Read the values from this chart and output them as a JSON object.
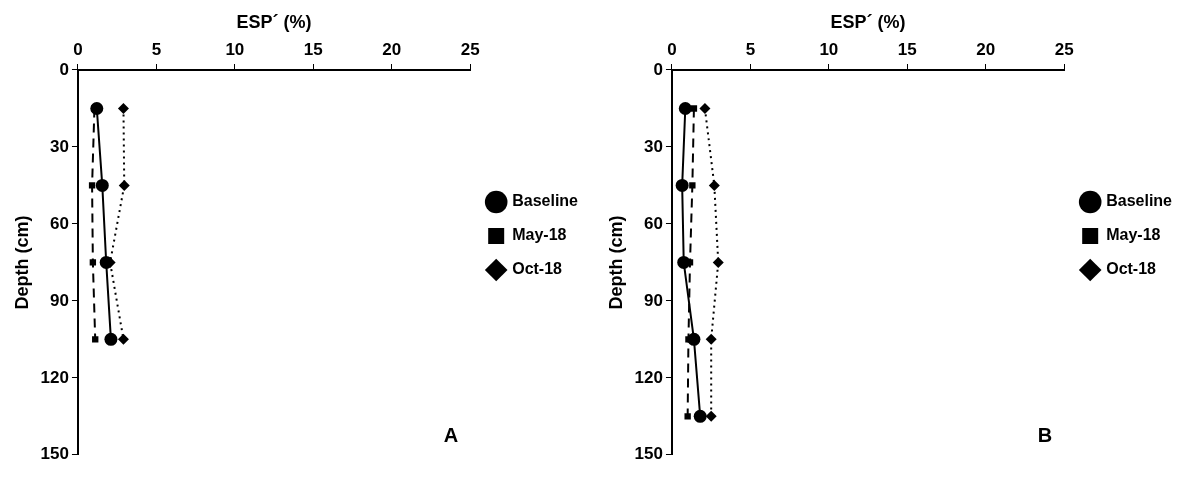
{
  "chart_data": [
    {
      "type": "line",
      "xlabel": "ESP´ (%)",
      "ylabel": "Depth (cm)",
      "xlim": [
        0,
        25
      ],
      "xticks": [
        0,
        5,
        10,
        15,
        20,
        25
      ],
      "ylim": [
        150,
        0
      ],
      "yticks": [
        0,
        30,
        60,
        90,
        120,
        150
      ],
      "legend": "right",
      "grid": false,
      "annotations": [
        "A"
      ],
      "series": [
        {
          "name": "Baseline",
          "color": "#000000",
          "marker": "circle",
          "line_style": "solid",
          "x": [
            1.2,
            1.55,
            1.8,
            2.1
          ],
          "values": [
            15,
            45,
            75,
            105
          ]
        },
        {
          "name": "May-18",
          "color": "#000000",
          "marker": "square",
          "line_style": "dashed",
          "x": [
            1.05,
            0.9,
            0.95,
            1.1
          ],
          "values": [
            15,
            45,
            75,
            105
          ]
        },
        {
          "name": "Oct-18",
          "color": "#000000",
          "marker": "diamond",
          "line_style": "dotted",
          "x": [
            2.9,
            2.95,
            2.05,
            2.9
          ],
          "values": [
            15,
            45,
            75,
            105
          ]
        }
      ]
    },
    {
      "type": "line",
      "xlabel": "ESP´ (%)",
      "ylabel": "Depth (cm)",
      "xlim": [
        0,
        25
      ],
      "xticks": [
        0,
        5,
        10,
        15,
        20,
        25
      ],
      "ylim": [
        150,
        0
      ],
      "yticks": [
        0,
        30,
        60,
        90,
        120,
        150
      ],
      "legend": "right",
      "grid": false,
      "annotations": [
        "B"
      ],
      "series": [
        {
          "name": "Baseline",
          "color": "#000000",
          "marker": "circle",
          "line_style": "solid",
          "x": [
            0.85,
            0.65,
            0.75,
            1.4,
            1.8
          ],
          "values": [
            15,
            45,
            75,
            105,
            135
          ]
        },
        {
          "name": "May-18",
          "color": "#000000",
          "marker": "square",
          "line_style": "dashed",
          "x": [
            1.4,
            1.3,
            1.15,
            1.05,
            1.0
          ],
          "values": [
            15,
            45,
            75,
            105,
            135
          ]
        },
        {
          "name": "Oct-18",
          "color": "#000000",
          "marker": "diamond",
          "line_style": "dotted",
          "x": [
            2.1,
            2.7,
            2.95,
            2.5,
            2.5
          ],
          "values": [
            15,
            45,
            75,
            105,
            135
          ]
        }
      ]
    }
  ]
}
